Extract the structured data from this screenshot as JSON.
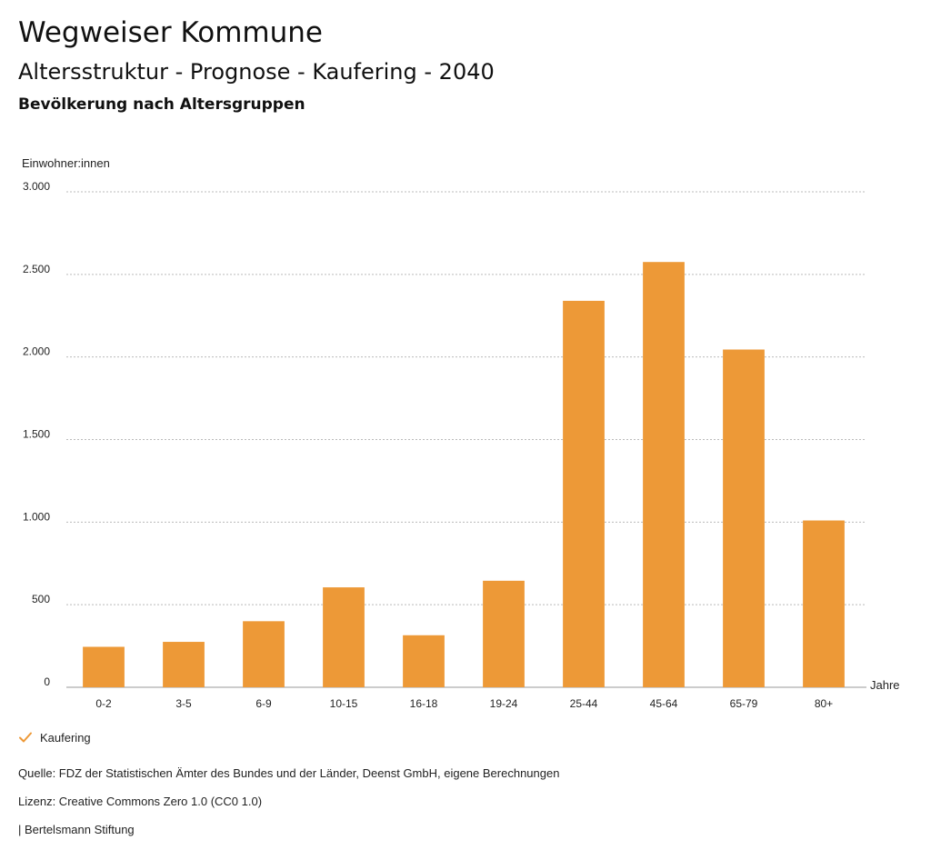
{
  "header": {
    "title": "Wegweiser Kommune",
    "subtitle": "Altersstruktur - Prognose - Kaufering - 2040",
    "heading": "Bevölkerung nach Altersgruppen"
  },
  "chart_data": {
    "type": "bar",
    "title": "Bevölkerung nach Altersgruppen",
    "ylabel": "Einwohner:innen",
    "xlabel": "Jahre",
    "categories": [
      "0-2",
      "3-5",
      "6-9",
      "10-15",
      "16-18",
      "19-24",
      "25-44",
      "45-64",
      "65-79",
      "80+"
    ],
    "series": [
      {
        "name": "Kaufering",
        "values": [
          245,
          275,
          400,
          605,
          315,
          645,
          2340,
          2575,
          2045,
          1010
        ]
      }
    ],
    "ylim": [
      0,
      3000
    ],
    "yticks": [
      0,
      500,
      1000,
      1500,
      2000,
      2500,
      3000
    ],
    "ytick_labels": [
      "0",
      "500",
      "1.000",
      "1.500",
      "2.000",
      "2.500",
      "3.000"
    ],
    "grid": true,
    "legend_position": "bottom-left",
    "color": "#ED9937"
  },
  "legend": {
    "label": "Kaufering"
  },
  "footer": {
    "source": "Quelle: FDZ der Statistischen Ämter des Bundes und der Länder, Deenst GmbH, eigene Berechnungen",
    "license": "Lizenz: Creative Commons Zero 1.0 (CC0 1.0)",
    "publisher": "| Bertelsmann Stiftung"
  }
}
